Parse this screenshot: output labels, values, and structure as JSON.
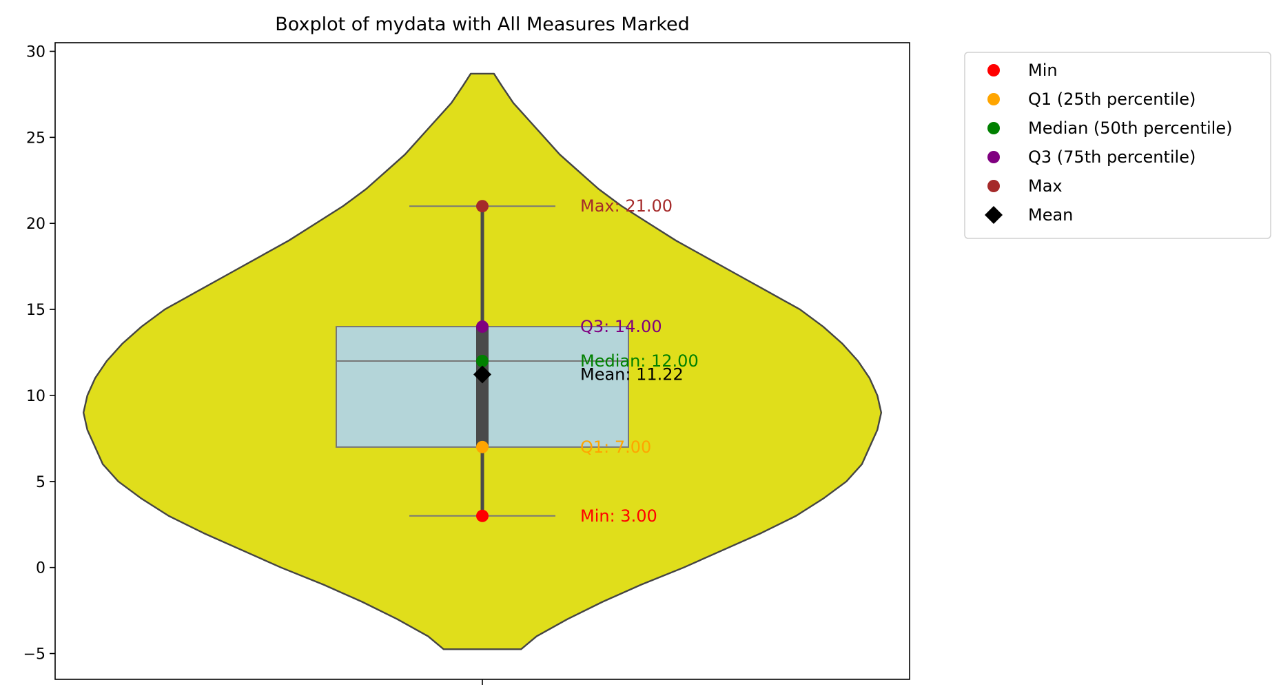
{
  "chart_data": {
    "type": "violin",
    "title": "Boxplot of mydata with All Measures Marked",
    "xlabel": "",
    "ylabel": "",
    "ylim": [
      -6.5,
      30.5
    ],
    "yticks": [
      -5,
      0,
      5,
      10,
      15,
      20,
      25,
      30
    ],
    "ytick_labels": [
      "−5",
      "0",
      "5",
      "10",
      "15",
      "20",
      "25",
      "30"
    ],
    "grid": false,
    "violin": {
      "color": "#e0de1b",
      "edge_color": "#444444",
      "range": [
        -4.75,
        28.7
      ],
      "profile": [
        [
          -4.75,
          0.1
        ],
        [
          -4.0,
          0.14
        ],
        [
          -3.0,
          0.22
        ],
        [
          -2.0,
          0.31
        ],
        [
          -1.0,
          0.41
        ],
        [
          0.0,
          0.52
        ],
        [
          1.0,
          0.62
        ],
        [
          2.0,
          0.72
        ],
        [
          3.0,
          0.81
        ],
        [
          4.0,
          0.88
        ],
        [
          5.0,
          0.94
        ],
        [
          6.0,
          0.98
        ],
        [
          7.0,
          1.0
        ],
        [
          8.0,
          1.02
        ],
        [
          9.0,
          1.03
        ],
        [
          10.0,
          1.02
        ],
        [
          11.0,
          1.0
        ],
        [
          12.0,
          0.97
        ],
        [
          13.0,
          0.93
        ],
        [
          14.0,
          0.88
        ],
        [
          15.0,
          0.82
        ],
        [
          16.0,
          0.74
        ],
        [
          17.0,
          0.66
        ],
        [
          18.0,
          0.58
        ],
        [
          19.0,
          0.5
        ],
        [
          20.0,
          0.43
        ],
        [
          21.0,
          0.36
        ],
        [
          22.0,
          0.3
        ],
        [
          23.0,
          0.25
        ],
        [
          24.0,
          0.2
        ],
        [
          25.0,
          0.16
        ],
        [
          26.0,
          0.12
        ],
        [
          27.0,
          0.08
        ],
        [
          28.0,
          0.05
        ],
        [
          28.7,
          0.03
        ]
      ]
    },
    "box": {
      "q1": 7.0,
      "median": 12.0,
      "q3": 14.0,
      "whisker_low": 3.0,
      "whisker_high": 21.0,
      "fill": "#b3d5e0",
      "edge_color": "#777777"
    },
    "points": [
      {
        "label": "Min",
        "value": 3.0,
        "color": "#ff0000",
        "text": "Min: 3.00",
        "marker": "circle"
      },
      {
        "label": "Q1 (25th percentile)",
        "value": 7.0,
        "color": "#ffa500",
        "text": "Q1: 7.00",
        "marker": "circle"
      },
      {
        "label": "Median (50th percentile)",
        "value": 12.0,
        "color": "#008000",
        "text": "Median: 12.00",
        "marker": "circle"
      },
      {
        "label": "Q3 (75th percentile)",
        "value": 14.0,
        "color": "#800080",
        "text": "Q3: 14.00",
        "marker": "circle"
      },
      {
        "label": "Max",
        "value": 21.0,
        "color": "#a52a2a",
        "text": "Max: 21.00",
        "marker": "circle"
      },
      {
        "label": "Mean",
        "value": 11.22,
        "color": "#000000",
        "text": "Mean: 11.22",
        "marker": "diamond"
      }
    ],
    "legend_position": "outside upper right"
  }
}
